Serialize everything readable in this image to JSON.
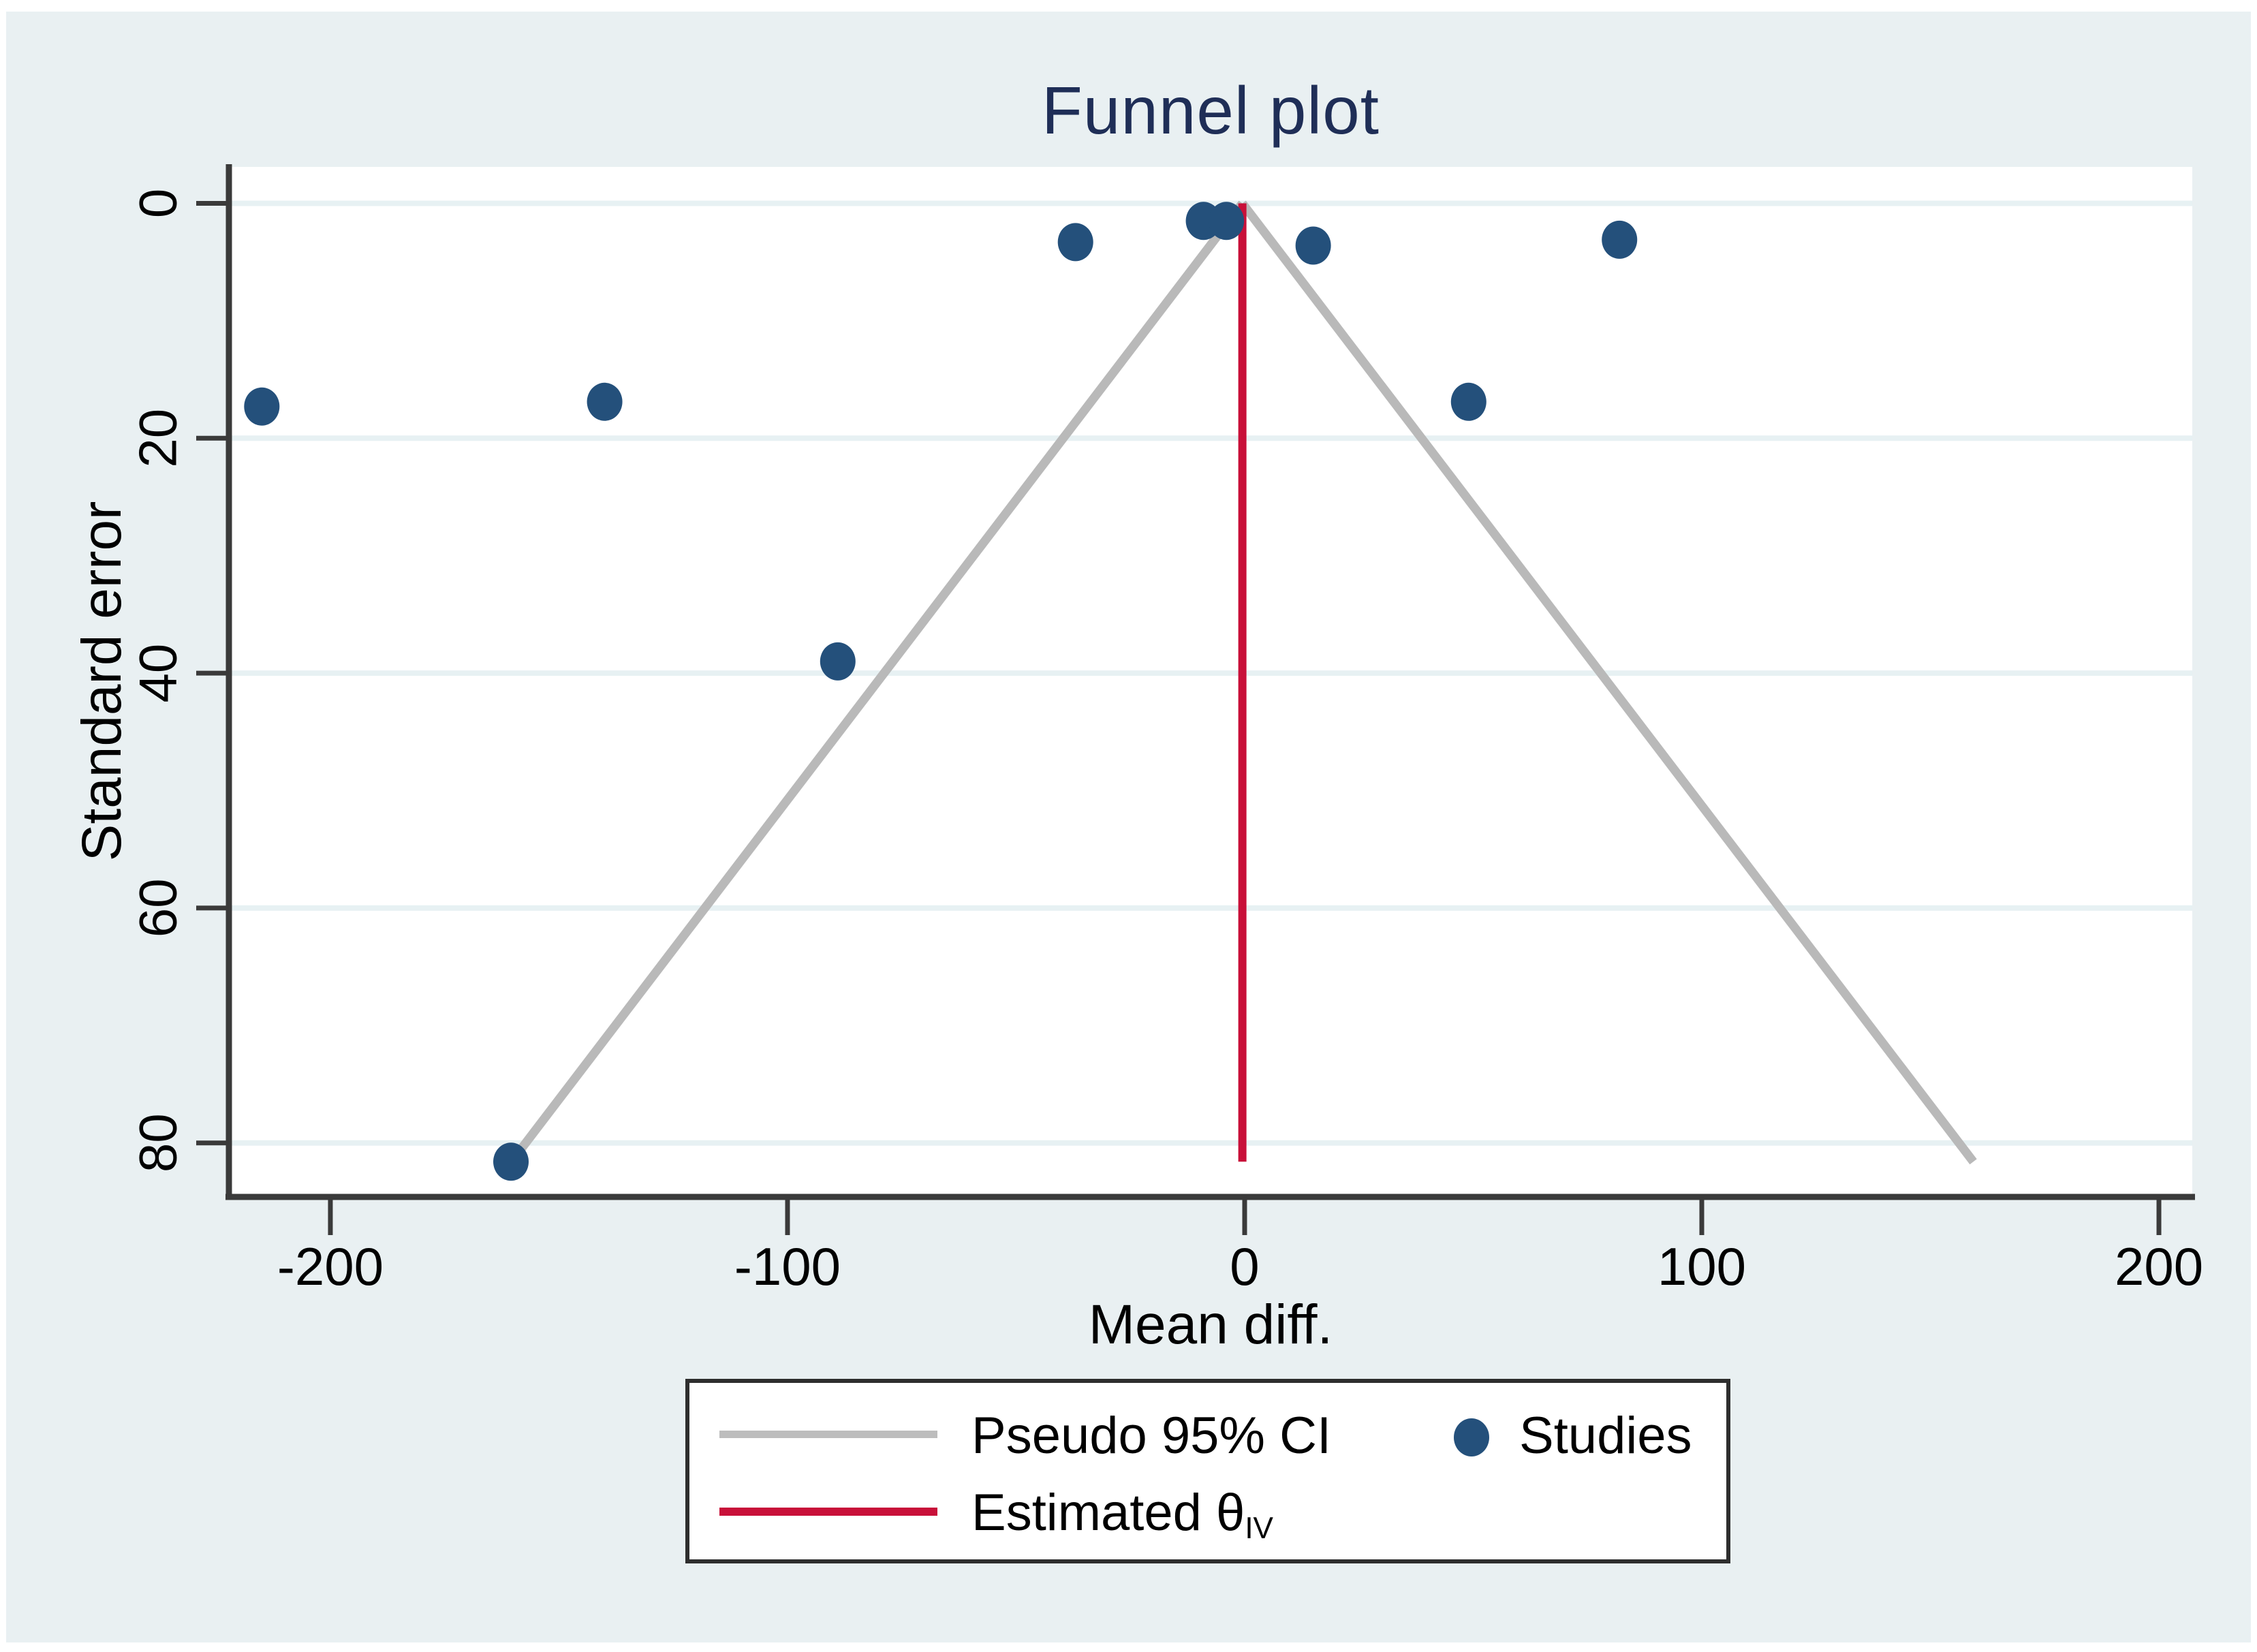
{
  "title": "Funnel plot",
  "axes": {
    "x_label": "Mean diff.",
    "y_label": "Standard error"
  },
  "legend": {
    "pseudo_ci_label": "Pseudo 95% CI",
    "studies_label": "Studies",
    "estimated_label_main": "Estimated θ",
    "estimated_label_sub": "IV"
  },
  "colors": {
    "figure_bg": "#e9f0f2",
    "plot_bg": "#ffffff",
    "gridline": "#e7f1f3",
    "axis_spine": "#3a3a3a",
    "tick_label": "#000000",
    "title_navy": "#1f2e57",
    "study_point": "#24507b",
    "pseudo_ci_line": "#b9b9b9",
    "estimated_line": "#c81039",
    "legend_border": "#2e2e2e"
  },
  "chart_data": {
    "type": "scatter",
    "title": "Funnel plot",
    "xlabel": "Mean diff.",
    "ylabel": "Standard error",
    "legend_entries": [
      "Pseudo 95% CI",
      "Studies",
      "Estimated θIV"
    ],
    "legend_position": "bottom-center",
    "grid": "horizontal-only",
    "x_ticks": [
      -200,
      -100,
      0,
      100,
      200
    ],
    "x_tick_labels": [
      "-200",
      "-100",
      "0",
      "100",
      "200"
    ],
    "y_ticks": [
      0,
      20,
      40,
      60,
      80
    ],
    "y_tick_labels": [
      "0",
      "20",
      "40",
      "60",
      "80"
    ],
    "xlim": [
      -222.2,
      207.3
    ],
    "ylim": [
      -3.1,
      84.6
    ],
    "y_axis_inverted": true,
    "estimated_theta_iv": -0.5,
    "ci_multiplier": 1.96,
    "max_se": 81.6,
    "pseudo_ci_funnel": {
      "apex": [
        -0.5,
        0
      ],
      "left_end": [
        -160.4,
        81.6
      ],
      "right_end": [
        159.4,
        81.6
      ]
    },
    "studies": [
      {
        "mean_diff": -215,
        "se": 17.3
      },
      {
        "mean_diff": -140,
        "se": 16.9
      },
      {
        "mean_diff": -160.5,
        "se": 81.6
      },
      {
        "mean_diff": -89,
        "se": 39.0
      },
      {
        "mean_diff": -37,
        "se": 3.3
      },
      {
        "mean_diff": -9,
        "se": 1.5
      },
      {
        "mean_diff": -4,
        "se": 1.5
      },
      {
        "mean_diff": 15,
        "se": 3.6
      },
      {
        "mean_diff": 49,
        "se": 16.9
      },
      {
        "mean_diff": 82,
        "se": 3.1
      }
    ]
  }
}
